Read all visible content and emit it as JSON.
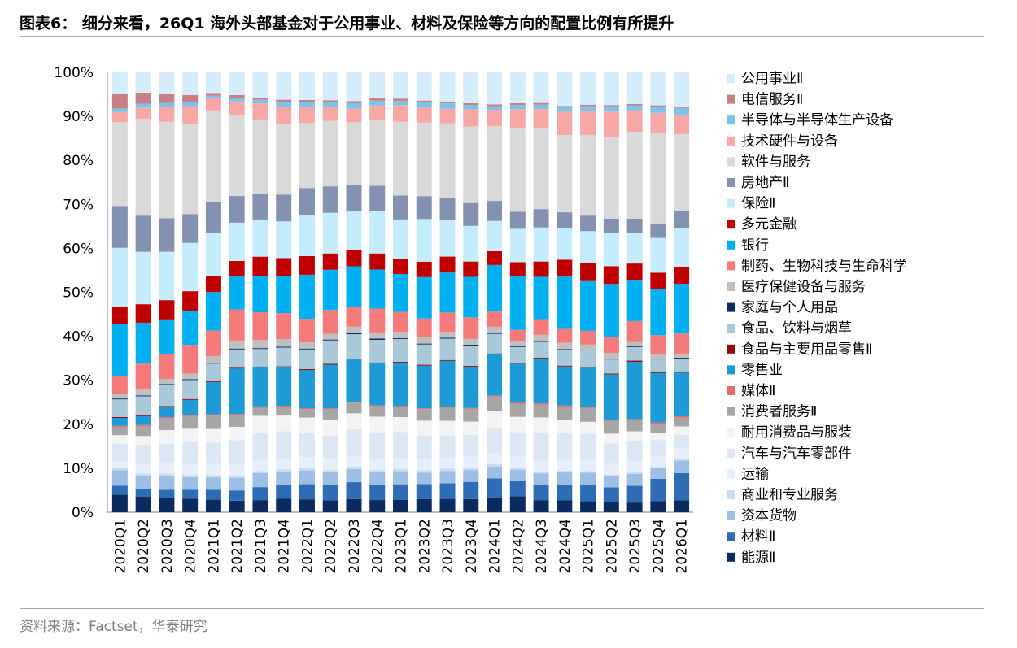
{
  "title": "图表6：  细分来看，26Q1 海外头部基金对于公用事业、材料及保险等方向的配置比例有所提升",
  "source": "资料来源：Factset，华泰研究",
  "chart_data": {
    "type": "stacked-bar",
    "ylim": [
      0,
      100
    ],
    "y_ticks": [
      "0%",
      "10%",
      "20%",
      "30%",
      "40%",
      "50%",
      "60%",
      "70%",
      "80%",
      "90%",
      "100%"
    ],
    "legend_position": "right",
    "categories": [
      "2020Q1",
      "2020Q2",
      "2020Q3",
      "2020Q4",
      "2021Q1",
      "2021Q2",
      "2021Q3",
      "2021Q4",
      "2022Q1",
      "2022Q2",
      "2022Q3",
      "2022Q4",
      "2023Q1",
      "2023Q2",
      "2023Q3",
      "2023Q4",
      "2024Q1",
      "2024Q2",
      "2024Q3",
      "2024Q4",
      "2025Q1",
      "2025Q2",
      "2025Q3",
      "2025Q4",
      "2026Q1"
    ],
    "series": [
      {
        "name": "能源Ⅱ",
        "color": "#0b2a5e",
        "values": [
          4.0,
          3.5,
          3.2,
          3.0,
          2.8,
          2.6,
          2.7,
          3.0,
          2.9,
          2.7,
          3.0,
          2.8,
          2.8,
          3.0,
          3.0,
          3.0,
          3.3,
          3.6,
          2.7,
          2.7,
          2.5,
          2.3,
          2.2,
          2.5,
          2.7
        ]
      },
      {
        "name": "材料Ⅱ",
        "color": "#2e6db5",
        "values": [
          2.0,
          1.8,
          1.8,
          2.0,
          2.2,
          2.3,
          2.9,
          3.0,
          3.4,
          3.4,
          3.8,
          3.6,
          3.6,
          3.4,
          3.5,
          3.9,
          4.3,
          3.5,
          3.6,
          3.4,
          3.6,
          3.4,
          3.8,
          5.1,
          6.1
        ]
      },
      {
        "name": "资本货物",
        "color": "#9dbfe6",
        "values": [
          3.5,
          3.0,
          3.2,
          2.8,
          2.8,
          2.8,
          3.1,
          3.0,
          3.1,
          3.0,
          3.0,
          2.8,
          3.0,
          2.6,
          2.8,
          2.7,
          2.7,
          2.6,
          2.6,
          2.8,
          2.8,
          2.6,
          2.7,
          2.4,
          2.8
        ]
      },
      {
        "name": "商业和专业服务",
        "color": "#c9dcf2",
        "values": [
          0.5,
          0.5,
          0.4,
          0.4,
          0.5,
          0.5,
          0.5,
          0.6,
          0.5,
          0.4,
          0.5,
          0.5,
          0.5,
          0.5,
          0.5,
          0.5,
          0.5,
          0.5,
          0.4,
          0.4,
          0.4,
          0.3,
          0.4,
          0.3,
          0.4
        ]
      },
      {
        "name": "运输",
        "color": "#e6eef9",
        "values": [
          1.5,
          2.0,
          2.5,
          2.5,
          2.5,
          2.5,
          2.5,
          2.5,
          2.5,
          2.8,
          2.5,
          2.5,
          2.5,
          2.5,
          2.5,
          2.5,
          2.5,
          2.5,
          2.5,
          2.4,
          2.5,
          2.5,
          2.4,
          2.4,
          2.4
        ]
      },
      {
        "name": "汽车与汽车零部件",
        "color": "#dde6f3",
        "values": [
          4.0,
          4.5,
          4.2,
          4.8,
          4.8,
          5.5,
          6.0,
          6.0,
          5.5,
          5.0,
          6.0,
          6.0,
          6.0,
          5.4,
          5.0,
          5.0,
          5.5,
          5.5,
          6.5,
          6.0,
          5.8,
          4.7,
          4.7,
          3.7,
          3.0
        ]
      },
      {
        "name": "耐用消费品与服装",
        "color": "#f3f3f3",
        "values": [
          2.0,
          2.0,
          3.0,
          3.0,
          3.0,
          3.0,
          3.8,
          3.5,
          3.4,
          3.7,
          3.6,
          3.8,
          3.4,
          3.4,
          3.3,
          3.0,
          3.9,
          3.5,
          3.4,
          2.9,
          2.8,
          2.2,
          2.2,
          1.6,
          1.9
        ]
      },
      {
        "name": "消费者服务Ⅱ",
        "color": "#a6a6a6",
        "values": [
          1.8,
          2.2,
          2.6,
          2.8,
          3.0,
          2.6,
          1.8,
          2.0,
          1.9,
          2.3,
          2.4,
          2.4,
          2.4,
          2.6,
          2.9,
          2.9,
          3.3,
          3.0,
          2.9,
          3.0,
          3.1,
          2.9,
          2.5,
          2.1,
          2.0
        ]
      },
      {
        "name": "媒体Ⅱ",
        "color": "#e46c6c",
        "values": [
          0.3,
          0.3,
          0.3,
          0.3,
          0.3,
          0.3,
          0.3,
          0.2,
          0.2,
          0.2,
          0.2,
          0.2,
          0.2,
          0.2,
          0.2,
          0.2,
          0.2,
          0.2,
          0.3,
          0.3,
          0.3,
          0.3,
          0.3,
          0.3,
          0.3
        ]
      },
      {
        "name": "零售业",
        "color": "#1e9bd7",
        "values": [
          1.8,
          2.0,
          2.3,
          3.3,
          7.2,
          10.2,
          8.7,
          8.6,
          8.6,
          9.9,
          9.6,
          9.7,
          9.9,
          9.7,
          10.4,
          9.4,
          9.3,
          8.9,
          10.3,
          8.7,
          8.8,
          10.4,
          13.0,
          11.2,
          9.8
        ]
      },
      {
        "name": "食品与主要用品零售Ⅱ",
        "color": "#8b0d0d",
        "values": [
          0.2,
          0.2,
          0.2,
          0.2,
          0.2,
          0.2,
          0.2,
          0.2,
          0.2,
          0.2,
          0.2,
          0.2,
          0.2,
          0.2,
          0.2,
          0.2,
          0.2,
          0.2,
          0.2,
          0.2,
          0.2,
          0.2,
          0.3,
          0.3,
          0.3
        ]
      },
      {
        "name": "食品、饮料与烟草",
        "color": "#a9c9d9",
        "values": [
          4.0,
          4.3,
          4.7,
          4.2,
          3.9,
          4.1,
          3.9,
          4.2,
          4.4,
          5.3,
          5.5,
          5.2,
          5.2,
          4.6,
          4.8,
          4.6,
          4.4,
          3.6,
          3.6,
          3.5,
          3.7,
          3.2,
          3.1,
          2.8,
          2.9
        ]
      },
      {
        "name": "家庭与个人用品",
        "color": "#0d2d5e",
        "values": [
          0.2,
          0.2,
          0.2,
          0.2,
          0.2,
          0.2,
          0.2,
          0.2,
          0.2,
          0.2,
          0.3,
          0.3,
          0.2,
          0.2,
          0.2,
          0.2,
          0.3,
          0.2,
          0.2,
          0.2,
          0.2,
          0.2,
          0.2,
          0.2,
          0.2
        ]
      },
      {
        "name": "医疗保健设备与服务",
        "color": "#bfbfbf",
        "values": [
          1.0,
          1.4,
          1.1,
          1.2,
          1.5,
          1.8,
          1.8,
          1.7,
          1.4,
          1.3,
          1.4,
          1.4,
          1.4,
          1.5,
          1.3,
          1.3,
          1.3,
          1.2,
          1.4,
          1.4,
          1.1,
          1.3,
          0.9,
          0.9,
          0.9
        ]
      },
      {
        "name": "制药、生物科技与生命科学",
        "color": "#f57a7a",
        "values": [
          4.2,
          5.8,
          5.5,
          6.4,
          5.7,
          7.0,
          6.2,
          5.8,
          5.3,
          5.4,
          4.4,
          5.5,
          4.6,
          4.2,
          4.4,
          4.9,
          3.4,
          2.5,
          3.6,
          3.1,
          3.1,
          3.7,
          4.8,
          4.4,
          4.5
        ]
      },
      {
        "name": "银行",
        "color": "#00b0f0",
        "values": [
          11.8,
          9.3,
          7.8,
          7.6,
          8.6,
          7.4,
          8.1,
          8.2,
          9.9,
          9.1,
          9.3,
          9.0,
          8.7,
          9.4,
          9.0,
          9.2,
          10.5,
          12.2,
          9.7,
          11.7,
          11.4,
          12.1,
          9.4,
          10.4,
          11.2
        ]
      },
      {
        "name": "多元金融",
        "color": "#c00000",
        "values": [
          3.9,
          4.2,
          4.3,
          4.3,
          3.6,
          3.5,
          4.3,
          4.1,
          4.2,
          3.7,
          3.7,
          3.7,
          3.5,
          3.5,
          3.6,
          3.5,
          3.1,
          3.2,
          3.5,
          3.8,
          4.0,
          4.1,
          3.7,
          3.8,
          3.9
        ]
      },
      {
        "name": "保险Ⅱ",
        "color": "#c5ecfa",
        "values": [
          13.3,
          11.9,
          10.8,
          10.7,
          9.7,
          8.6,
          8.3,
          8.2,
          9.3,
          9.2,
          8.7,
          9.8,
          9.0,
          9.7,
          8.3,
          8.1,
          6.8,
          7.6,
          7.8,
          7.0,
          7.1,
          7.5,
          6.9,
          7.9,
          8.7
        ]
      },
      {
        "name": "房地产Ⅱ",
        "color": "#8491b0",
        "values": [
          9.5,
          8.2,
          7.5,
          6.4,
          6.8,
          6.0,
          5.8,
          6.0,
          6.0,
          6.0,
          6.1,
          5.8,
          5.5,
          5.2,
          5.0,
          5.2,
          4.5,
          3.9,
          4.2,
          3.6,
          3.5,
          3.4,
          3.3,
          3.3,
          3.8
        ]
      },
      {
        "name": "软件与服务",
        "color": "#d9d9d9",
        "values": [
          19.0,
          22.0,
          21.5,
          20.0,
          20.5,
          18.2,
          16.5,
          15.7,
          14.6,
          14.8,
          14.1,
          15.1,
          16.9,
          16.7,
          16.7,
          17.4,
          16.8,
          19.0,
          18.6,
          17.3,
          18.2,
          18.7,
          19.8,
          20.5,
          17.3
        ]
      },
      {
        "name": "技术硬件与设备",
        "color": "#f8a7a7",
        "values": [
          2.3,
          2.5,
          3.2,
          3.9,
          2.7,
          3.1,
          3.6,
          3.9,
          3.7,
          3.1,
          3.1,
          3.4,
          3.8,
          3.4,
          3.3,
          3.9,
          3.7,
          4.3,
          4.3,
          5.2,
          5.4,
          5.8,
          4.9,
          4.6,
          4.4
        ]
      },
      {
        "name": "半导体与半导体生产设备",
        "color": "#7cc3ea",
        "values": [
          0.8,
          0.9,
          1.0,
          1.0,
          0.6,
          0.7,
          0.8,
          1.0,
          1.0,
          1.1,
          1.2,
          1.1,
          1.0,
          1.2,
          1.2,
          1.0,
          0.8,
          1.0,
          1.0,
          1.0,
          1.1,
          1.2,
          1.1,
          1.4,
          1.5
        ]
      },
      {
        "name": "电信服务Ⅱ",
        "color": "#c97f84",
        "values": [
          3.4,
          2.5,
          2.0,
          1.5,
          0.6,
          0.7,
          0.5,
          0.6,
          0.5,
          0.5,
          0.5,
          0.5,
          0.5,
          0.4,
          0.4,
          0.4,
          0.4,
          0.4,
          0.4,
          0.3,
          0.3,
          0.3,
          0.3,
          0.3,
          0.2
        ]
      },
      {
        "name": "公用事业Ⅱ",
        "color": "#d5edfa",
        "values": [
          4.8,
          4.6,
          4.8,
          5.0,
          4.6,
          5.1,
          5.6,
          6.1,
          6.2,
          6.3,
          6.5,
          6.0,
          6.0,
          6.4,
          6.6,
          7.0,
          7.2,
          7.0,
          7.0,
          7.5,
          7.3,
          7.5,
          7.2,
          7.5,
          7.8
        ]
      }
    ]
  }
}
